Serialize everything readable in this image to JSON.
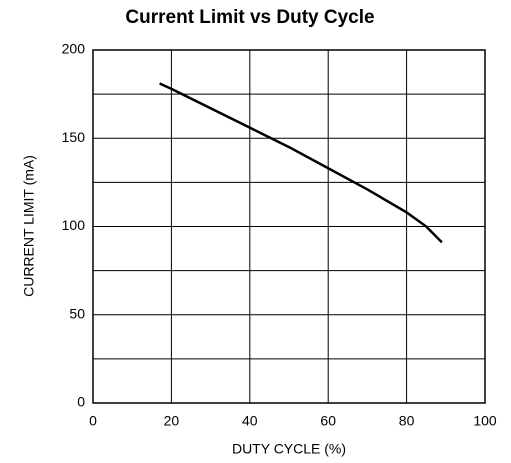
{
  "chart_data": {
    "type": "line",
    "title": "Current Limit vs Duty Cycle",
    "x_label": "DUTY CYCLE (%)",
    "y_label": "CURRENT LIMIT (mA)",
    "x": [
      17,
      20,
      30,
      40,
      50,
      60,
      70,
      80,
      85,
      89
    ],
    "series": [
      {
        "name": "Current Limit",
        "color": "#000000",
        "values": [
          181,
          178,
          167,
          156,
          145,
          133,
          121,
          108,
          100,
          91
        ]
      }
    ],
    "xlim": [
      0,
      100
    ],
    "xticks": [
      0,
      20,
      40,
      60,
      80,
      100
    ],
    "ylim": [
      0,
      200
    ],
    "yticks": [
      0,
      50,
      100,
      150,
      200
    ],
    "yminor_ticks": [
      25,
      75,
      125,
      175
    ],
    "grid": true
  }
}
